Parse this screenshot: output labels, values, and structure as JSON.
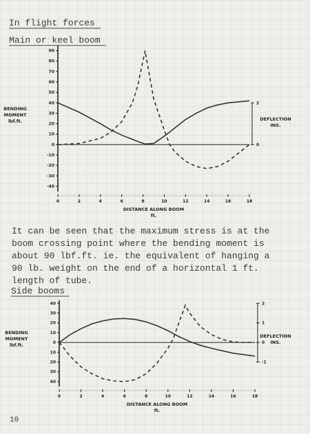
{
  "header": {
    "title": "In flight forces"
  },
  "sections": [
    {
      "heading": "Main or keel boom"
    },
    {
      "heading": "Side booms"
    }
  ],
  "paragraph": [
    "It can be seen that the maximum stress is at the",
    "boom crossing point where the bending moment is",
    "about 90 lbf.ft. ie. the equivalent of hanging a",
    "90 lb. weight on the end of a horizontal 1 ft.",
    "length of tube."
  ],
  "page_number": "10",
  "chart_data": [
    {
      "type": "line",
      "y_label": [
        "BENDING",
        "MOMENT",
        "lbf.ft."
      ],
      "y2_label": [
        "DEFLECTION",
        "INS."
      ],
      "x_label": [
        "DISTANCE ALONG BOOM",
        "ft."
      ],
      "x": [
        0,
        2,
        4,
        5,
        6,
        7,
        7.5,
        8.2,
        9,
        10,
        10.5,
        11,
        12,
        13,
        14,
        15,
        16,
        17,
        18
      ],
      "series": [
        {
          "color": "#333333",
          "dash": false,
          "values": [
            40,
            31,
            20,
            14,
            9,
            5,
            3,
            0.5,
            1,
            8,
            12,
            16,
            24,
            30,
            35,
            38,
            40,
            41,
            42
          ]
        },
        {
          "color": "#333333",
          "dash": true,
          "axis": "y2",
          "values": [
            0,
            0.05,
            0.3,
            0.6,
            1.1,
            2.0,
            2.8,
            4.5,
            2.2,
            0.7,
            0,
            -0.35,
            -0.8,
            -1.05,
            -1.15,
            -1.05,
            -0.8,
            -0.4,
            0
          ]
        }
      ],
      "xlim": [
        0,
        18
      ],
      "xticks": [
        0,
        2,
        4,
        6,
        8,
        10,
        12,
        14,
        16,
        18
      ],
      "ylim": [
        -45,
        95
      ],
      "yticks": [
        90,
        80,
        70,
        60,
        50,
        40,
        30,
        20,
        10,
        0,
        -10,
        -20,
        -30,
        -40
      ],
      "y2lim": [
        -2.25,
        4.75
      ],
      "y2ticks": [
        2,
        0
      ]
    },
    {
      "type": "line",
      "y_label": [
        "BENDING",
        "MOMENT",
        "lbf.ft."
      ],
      "y2_label": [
        "DEFLECTION",
        "INS."
      ],
      "x_label": [
        "DISTANCE ALONG BOOM",
        "ft."
      ],
      "x": [
        0,
        1,
        2,
        3,
        4,
        5,
        6,
        7,
        8,
        9,
        10,
        10.5,
        11,
        11.6,
        12,
        13,
        14,
        15,
        16,
        17,
        18
      ],
      "series": [
        {
          "color": "#333333",
          "dash": false,
          "values": [
            0,
            8,
            14,
            19,
            22,
            24,
            24.5,
            23.5,
            21,
            17,
            12,
            9,
            6,
            3,
            1,
            -3,
            -6,
            -8.5,
            -11,
            -12.5,
            -14
          ]
        },
        {
          "color": "#333333",
          "dash": true,
          "axis": "y2",
          "values": [
            0,
            -0.7,
            -1.25,
            -1.6,
            -1.85,
            -1.97,
            -2,
            -1.9,
            -1.6,
            -1.05,
            -0.3,
            0.2,
            1.0,
            1.9,
            1.5,
            0.8,
            0.4,
            0.15,
            0.03,
            0,
            0
          ]
        }
      ],
      "xlim": [
        0,
        18
      ],
      "xticks": [
        0,
        2,
        4,
        6,
        8,
        10,
        12,
        14,
        16,
        18
      ],
      "ylim": [
        -45,
        43
      ],
      "yticks": [
        40,
        30,
        20,
        10,
        0,
        {
          "value": -10,
          "label": "10"
        },
        {
          "value": -20,
          "label": "20"
        },
        {
          "value": -30,
          "label": "30"
        },
        {
          "value": -40,
          "label": "40"
        }
      ],
      "y2lim": [
        -2.25,
        2.15
      ],
      "y2ticks": [
        2,
        1,
        0,
        -1
      ]
    }
  ]
}
